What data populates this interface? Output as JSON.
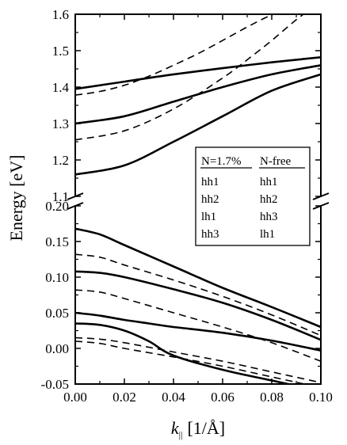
{
  "chart_data": {
    "type": "line",
    "title": "",
    "xlabel": {
      "symbol": "k",
      "subscript": "||",
      "unit": "[1/Å]"
    },
    "ylabel": "Energy [eV]",
    "xlim": [
      0.0,
      0.1
    ],
    "axis_break": true,
    "panels": {
      "upper": {
        "ylim": [
          1.1,
          1.6
        ],
        "yticks": [
          "1.1",
          "1.2",
          "1.3",
          "1.4",
          "1.5",
          "1.6"
        ],
        "series": [
          {
            "style": "solid",
            "x": [
              0,
              0.02,
              0.04,
              0.06,
              0.08,
              0.1
            ],
            "y": [
              1.395,
              1.415,
              1.435,
              1.452,
              1.468,
              1.482
            ]
          },
          {
            "style": "solid",
            "x": [
              0,
              0.02,
              0.04,
              0.06,
              0.08,
              0.1
            ],
            "y": [
              1.3,
              1.32,
              1.36,
              1.4,
              1.435,
              1.46
            ]
          },
          {
            "style": "solid",
            "x": [
              0,
              0.02,
              0.04,
              0.06,
              0.08,
              0.1
            ],
            "y": [
              1.16,
              1.185,
              1.25,
              1.32,
              1.39,
              1.435
            ]
          },
          {
            "style": "dashed",
            "x": [
              0,
              0.01,
              0.02,
              0.03,
              0.04,
              0.05,
              0.06,
              0.07,
              0.08,
              0.09
            ],
            "y": [
              1.378,
              1.388,
              1.405,
              1.43,
              1.46,
              1.492,
              1.528,
              1.565,
              1.598,
              1.62
            ]
          },
          {
            "style": "dashed",
            "x": [
              0,
              0.02,
              0.04,
              0.06,
              0.07,
              0.08,
              0.09,
              0.1
            ],
            "y": [
              1.255,
              1.28,
              1.34,
              1.425,
              1.475,
              1.528,
              1.585,
              1.635
            ]
          }
        ]
      },
      "lower": {
        "ylim": [
          -0.05,
          0.2
        ],
        "yticks": [
          "-0.05",
          "0.00",
          "0.05",
          "0.10",
          "0.15",
          "0.20"
        ],
        "series": [
          {
            "style": "solid",
            "x": [
              0,
              0.01,
              0.02,
              0.04,
              0.06,
              0.08,
              0.1
            ],
            "y": [
              0.168,
              0.16,
              0.145,
              0.115,
              0.085,
              0.058,
              0.03
            ]
          },
          {
            "style": "solid",
            "x": [
              0,
              0.01,
              0.02,
              0.04,
              0.06,
              0.08,
              0.1
            ],
            "y": [
              0.108,
              0.106,
              0.1,
              0.083,
              0.064,
              0.04,
              0.012
            ]
          },
          {
            "style": "solid",
            "x": [
              0,
              0.01,
              0.02,
              0.03,
              0.04,
              0.06,
              0.08,
              0.1
            ],
            "y": [
              0.05,
              0.046,
              0.04,
              0.035,
              0.03,
              0.022,
              0.011,
              -0.003
            ]
          },
          {
            "style": "solid",
            "x": [
              0,
              0.01,
              0.02,
              0.03,
              0.04,
              0.06,
              0.08,
              0.1
            ],
            "y": [
              0.035,
              0.033,
              0.025,
              0.01,
              -0.01,
              -0.03,
              -0.045,
              -0.06
            ]
          },
          {
            "style": "dashed",
            "x": [
              0,
              0.01,
              0.02,
              0.04,
              0.06,
              0.08,
              0.1
            ],
            "y": [
              0.132,
              0.128,
              0.117,
              0.096,
              0.073,
              0.047,
              0.018
            ]
          },
          {
            "style": "dashed",
            "x": [
              0,
              0.01,
              0.02,
              0.04,
              0.06,
              0.08,
              0.1
            ],
            "y": [
              0.082,
              0.079,
              0.07,
              0.05,
              0.03,
              0.008,
              -0.018
            ]
          },
          {
            "style": "dashed",
            "x": [
              0,
              0.01,
              0.02,
              0.04,
              0.06,
              0.08,
              0.1
            ],
            "y": [
              0.015,
              0.013,
              0.008,
              -0.005,
              -0.018,
              -0.033,
              -0.048
            ]
          },
          {
            "style": "dashed",
            "x": [
              0,
              0.01,
              0.02,
              0.04,
              0.06,
              0.08,
              0.1
            ],
            "y": [
              0.01,
              0.007,
              0.0,
              -0.012,
              -0.025,
              -0.04,
              -0.055
            ]
          }
        ]
      }
    },
    "xticks": [
      "0.00",
      "0.02",
      "0.04",
      "0.06",
      "0.08",
      "0.10"
    ],
    "legend": {
      "placement": "upper-right",
      "headers": [
        "N=1.7%",
        "N-free"
      ],
      "rows": [
        [
          "hh1",
          "hh1"
        ],
        [
          "hh2",
          "hh2"
        ],
        [
          "lh1",
          "hh3"
        ],
        [
          "hh3",
          "lh1"
        ]
      ]
    }
  }
}
